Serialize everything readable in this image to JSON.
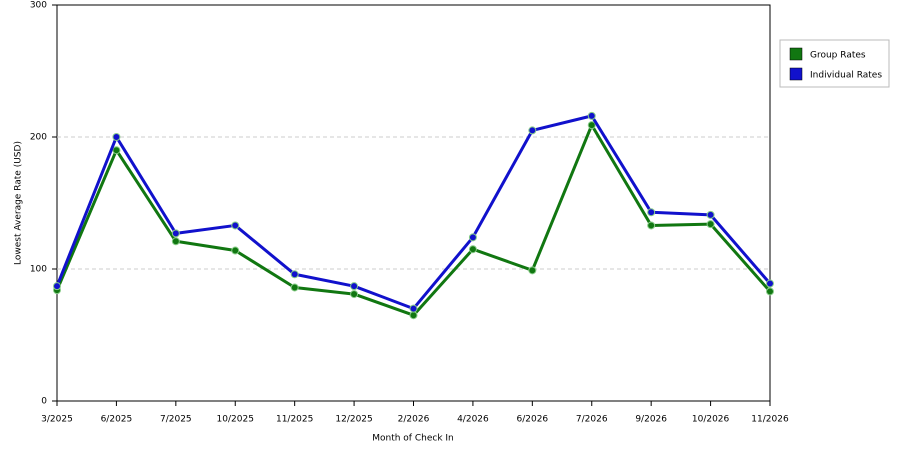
{
  "chart_data": {
    "type": "line",
    "x_label": "Month of Check In",
    "y_label": "Lowest Average Rate (USD)",
    "categories": [
      "3/2025",
      "6/2025",
      "7/2025",
      "10/2025",
      "11/2025",
      "12/2025",
      "2/2026",
      "4/2026",
      "6/2026",
      "7/2026",
      "9/2026",
      "10/2026",
      "11/2026"
    ],
    "series": [
      {
        "name": "Group Rates",
        "color": "#117711",
        "values": [
          84,
          190,
          121,
          114,
          86,
          81,
          65,
          115,
          99,
          209,
          133,
          134,
          83
        ]
      },
      {
        "name": "Individual Rates",
        "color": "#1111cc",
        "values": [
          87,
          200,
          127,
          133,
          96,
          87,
          70,
          124,
          205,
          216,
          143,
          141,
          89
        ]
      }
    ],
    "ylim": [
      0,
      300
    ],
    "yticks": [
      0,
      100,
      200,
      300
    ],
    "grid": true,
    "legend": "right"
  }
}
